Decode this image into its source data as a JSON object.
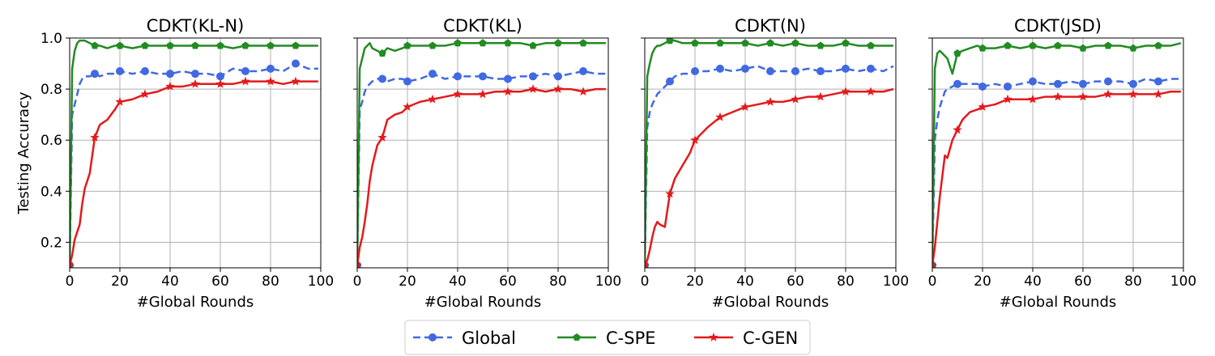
{
  "legend": [
    {
      "label": "Global",
      "color": "#4169e1",
      "dash": "dashed",
      "marker": "circle"
    },
    {
      "label": "C-SPE",
      "color": "#228b22",
      "dash": "solid",
      "marker": "pentagon"
    },
    {
      "label": "C-GEN",
      "color": "#e31a1c",
      "dash": "solid",
      "marker": "star"
    }
  ],
  "chart_data": [
    {
      "type": "line",
      "title": "CDKT(KL-N)",
      "xlabel": "#Global Rounds",
      "ylabel": "Testing Accuracy",
      "xlim": [
        0,
        100
      ],
      "ylim": [
        0.1,
        1.0
      ],
      "xticks": [
        "0",
        "20",
        "40",
        "60",
        "80",
        "100"
      ],
      "yticks": [
        "0.2",
        "0.4",
        "0.6",
        "0.8",
        "1.0"
      ],
      "grid": true,
      "x": [
        0,
        1,
        2,
        3,
        4,
        5,
        6,
        8,
        10,
        12,
        15,
        18,
        20,
        25,
        30,
        35,
        40,
        45,
        50,
        55,
        60,
        65,
        70,
        75,
        80,
        85,
        90,
        95,
        99
      ],
      "series": [
        {
          "name": "Global",
          "values": [
            0.11,
            0.7,
            0.74,
            0.78,
            0.82,
            0.84,
            0.85,
            0.85,
            0.86,
            0.85,
            0.86,
            0.86,
            0.87,
            0.86,
            0.87,
            0.86,
            0.86,
            0.87,
            0.86,
            0.86,
            0.85,
            0.88,
            0.87,
            0.87,
            0.88,
            0.87,
            0.9,
            0.88,
            0.88
          ]
        },
        {
          "name": "C-SPE",
          "values": [
            0.11,
            0.88,
            0.95,
            0.98,
            0.99,
            0.99,
            0.99,
            0.98,
            0.97,
            0.97,
            0.96,
            0.97,
            0.97,
            0.96,
            0.97,
            0.97,
            0.97,
            0.97,
            0.97,
            0.97,
            0.97,
            0.96,
            0.97,
            0.97,
            0.97,
            0.97,
            0.97,
            0.97,
            0.97
          ]
        },
        {
          "name": "C-GEN",
          "values": [
            0.11,
            0.15,
            0.21,
            0.24,
            0.27,
            0.35,
            0.41,
            0.47,
            0.61,
            0.66,
            0.68,
            0.72,
            0.75,
            0.76,
            0.78,
            0.79,
            0.81,
            0.81,
            0.82,
            0.82,
            0.82,
            0.82,
            0.83,
            0.83,
            0.83,
            0.82,
            0.83,
            0.83,
            0.83
          ]
        }
      ]
    },
    {
      "type": "line",
      "title": "CDKT(KL)",
      "xlabel": "#Global Rounds",
      "ylabel": "",
      "xlim": [
        0,
        100
      ],
      "ylim": [
        0.1,
        1.0
      ],
      "xticks": [
        "0",
        "20",
        "40",
        "60",
        "80",
        "100"
      ],
      "yticks": [],
      "grid": true,
      "x": [
        0,
        1,
        2,
        3,
        4,
        5,
        6,
        8,
        10,
        12,
        15,
        18,
        20,
        25,
        30,
        35,
        40,
        45,
        50,
        55,
        60,
        65,
        70,
        75,
        80,
        85,
        90,
        95,
        99
      ],
      "series": [
        {
          "name": "Global",
          "values": [
            0.11,
            0.72,
            0.75,
            0.79,
            0.81,
            0.82,
            0.83,
            0.84,
            0.84,
            0.83,
            0.84,
            0.84,
            0.83,
            0.84,
            0.86,
            0.84,
            0.85,
            0.85,
            0.85,
            0.84,
            0.84,
            0.85,
            0.85,
            0.86,
            0.85,
            0.86,
            0.87,
            0.86,
            0.86
          ]
        },
        {
          "name": "C-SPE",
          "values": [
            0.11,
            0.88,
            0.92,
            0.96,
            0.97,
            0.98,
            0.96,
            0.95,
            0.94,
            0.96,
            0.95,
            0.96,
            0.97,
            0.97,
            0.97,
            0.97,
            0.98,
            0.98,
            0.98,
            0.98,
            0.98,
            0.98,
            0.97,
            0.98,
            0.98,
            0.98,
            0.98,
            0.98,
            0.98
          ]
        },
        {
          "name": "C-GEN",
          "values": [
            0.11,
            0.18,
            0.22,
            0.28,
            0.35,
            0.44,
            0.5,
            0.58,
            0.61,
            0.68,
            0.7,
            0.71,
            0.73,
            0.75,
            0.76,
            0.77,
            0.78,
            0.78,
            0.78,
            0.79,
            0.79,
            0.79,
            0.8,
            0.79,
            0.8,
            0.8,
            0.79,
            0.8,
            0.8
          ]
        }
      ]
    },
    {
      "type": "line",
      "title": "CDKT(N)",
      "xlabel": "#Global Rounds",
      "ylabel": "",
      "xlim": [
        0,
        100
      ],
      "ylim": [
        0.1,
        1.0
      ],
      "xticks": [
        "0",
        "20",
        "40",
        "60",
        "80",
        "100"
      ],
      "yticks": [],
      "grid": true,
      "x": [
        0,
        1,
        2,
        3,
        4,
        5,
        6,
        8,
        10,
        12,
        15,
        18,
        20,
        25,
        30,
        35,
        40,
        45,
        50,
        55,
        60,
        65,
        70,
        75,
        80,
        85,
        90,
        95,
        99
      ],
      "series": [
        {
          "name": "Global",
          "values": [
            0.11,
            0.65,
            0.71,
            0.74,
            0.76,
            0.78,
            0.79,
            0.81,
            0.83,
            0.85,
            0.86,
            0.86,
            0.87,
            0.87,
            0.88,
            0.87,
            0.88,
            0.89,
            0.87,
            0.87,
            0.87,
            0.88,
            0.87,
            0.87,
            0.88,
            0.87,
            0.88,
            0.87,
            0.89
          ]
        },
        {
          "name": "C-SPE",
          "values": [
            0.11,
            0.85,
            0.9,
            0.94,
            0.96,
            0.97,
            0.97,
            0.98,
            0.99,
            0.99,
            0.98,
            0.98,
            0.98,
            0.98,
            0.98,
            0.98,
            0.98,
            0.97,
            0.98,
            0.97,
            0.98,
            0.97,
            0.97,
            0.97,
            0.98,
            0.97,
            0.97,
            0.97,
            0.97
          ]
        },
        {
          "name": "C-GEN",
          "values": [
            0.11,
            0.13,
            0.17,
            0.22,
            0.26,
            0.28,
            0.27,
            0.26,
            0.39,
            0.45,
            0.5,
            0.55,
            0.6,
            0.65,
            0.69,
            0.71,
            0.73,
            0.74,
            0.75,
            0.75,
            0.76,
            0.77,
            0.77,
            0.78,
            0.79,
            0.79,
            0.79,
            0.79,
            0.8
          ]
        }
      ]
    },
    {
      "type": "line",
      "title": "CDKT(JSD)",
      "xlabel": "#Global Rounds",
      "ylabel": "",
      "xlim": [
        0,
        100
      ],
      "ylim": [
        0.1,
        1.0
      ],
      "xticks": [
        "0",
        "20",
        "40",
        "60",
        "80",
        "100"
      ],
      "yticks": [],
      "grid": true,
      "x": [
        0,
        1,
        2,
        3,
        4,
        5,
        6,
        8,
        10,
        12,
        15,
        18,
        20,
        25,
        30,
        35,
        40,
        45,
        50,
        55,
        60,
        65,
        70,
        75,
        80,
        85,
        90,
        95,
        99
      ],
      "series": [
        {
          "name": "Global",
          "values": [
            0.11,
            0.6,
            0.68,
            0.73,
            0.76,
            0.79,
            0.8,
            0.81,
            0.82,
            0.82,
            0.82,
            0.82,
            0.81,
            0.82,
            0.81,
            0.82,
            0.83,
            0.82,
            0.82,
            0.83,
            0.82,
            0.83,
            0.83,
            0.83,
            0.82,
            0.84,
            0.83,
            0.84,
            0.84
          ]
        },
        {
          "name": "C-SPE",
          "values": [
            0.11,
            0.88,
            0.94,
            0.95,
            0.94,
            0.93,
            0.92,
            0.86,
            0.94,
            0.95,
            0.96,
            0.97,
            0.96,
            0.96,
            0.97,
            0.96,
            0.97,
            0.96,
            0.97,
            0.97,
            0.96,
            0.97,
            0.97,
            0.97,
            0.96,
            0.97,
            0.97,
            0.97,
            0.98
          ]
        },
        {
          "name": "C-GEN",
          "values": [
            0.11,
            0.18,
            0.28,
            0.38,
            0.46,
            0.54,
            0.53,
            0.6,
            0.64,
            0.68,
            0.71,
            0.72,
            0.73,
            0.74,
            0.76,
            0.76,
            0.76,
            0.77,
            0.77,
            0.77,
            0.77,
            0.77,
            0.78,
            0.78,
            0.78,
            0.78,
            0.78,
            0.79,
            0.79
          ]
        }
      ]
    }
  ]
}
